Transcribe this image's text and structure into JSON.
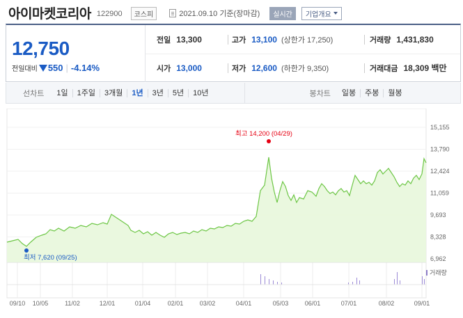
{
  "header": {
    "company_name": "아이마켓코리아",
    "code": "122900",
    "market": "코스피",
    "date_text": "2021.09.10 기준(장마감)",
    "realtime_label": "실시간",
    "overview_label": "기업개요"
  },
  "price": {
    "current": "12,750",
    "change_label": "전일대비",
    "change": "550",
    "change_rate": "-4.14%"
  },
  "stats": {
    "prev_close_label": "전일",
    "prev_close": "13,300",
    "high_label": "고가",
    "high": "13,100",
    "upper_limit": "(상한가 17,250)",
    "volume_label": "거래량",
    "volume": "1,431,830",
    "open_label": "시가",
    "open": "13,000",
    "low_label": "저가",
    "low": "12,600",
    "lower_limit": "(하한가 9,350)",
    "amount_label": "거래대금",
    "amount": "18,309 백만"
  },
  "tabs": {
    "line_chart_label": "선차트",
    "periods": [
      "1일",
      "1주일",
      "3개월",
      "1년",
      "3년",
      "5년",
      "10년"
    ],
    "active_period": "1년",
    "candle_chart_label": "봉차트",
    "candles": [
      "일봉",
      "주봉",
      "월봉"
    ]
  },
  "chart_data": {
    "type": "area",
    "y_ticks": [
      "15,155",
      "13,790",
      "12,424",
      "11,059",
      "9,693",
      "8,328",
      "6,962"
    ],
    "x_ticks": [
      "09/10",
      "10/05",
      "11/02",
      "12/01",
      "01/04",
      "02/01",
      "03/02",
      "04/01",
      "05/03",
      "06/01",
      "07/01",
      "08/02",
      "09/01"
    ],
    "max_label": "최고 14,200 (04/29)",
    "min_label": "최저 7,620 (09/25)",
    "volume_label": "거래량",
    "line_color": "#6cc644",
    "fill_color": "#e8f7dc",
    "max_color": "#e60012",
    "min_color": "#1a5bc4"
  }
}
